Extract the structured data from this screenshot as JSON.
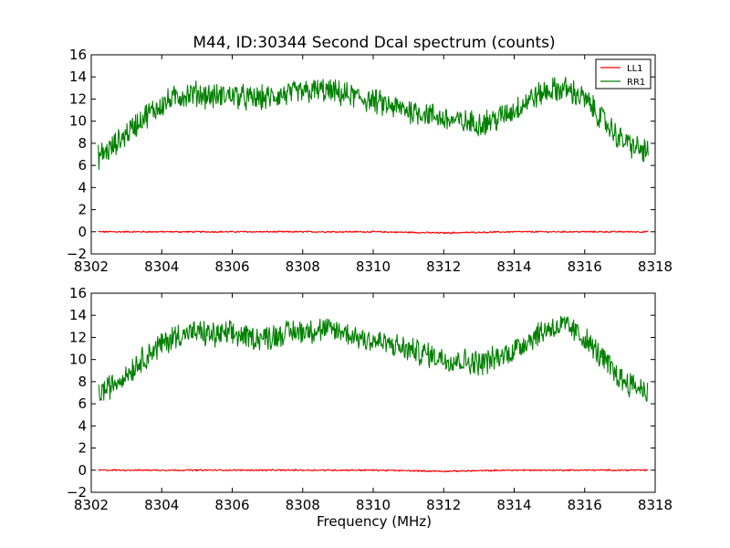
{
  "chart_data": [
    {
      "type": "line",
      "title": "M44, ID:30344 Second Dcal spectrum (counts)",
      "xlabel": "",
      "ylabel": "",
      "xlim": [
        8302,
        8318
      ],
      "ylim": [
        -2,
        16
      ],
      "xticks": [
        "8302",
        "8304",
        "8306",
        "8308",
        "8310",
        "8312",
        "8314",
        "8316",
        "8318"
      ],
      "yticks": [
        "−2",
        "0",
        "2",
        "4",
        "6",
        "8",
        "10",
        "12",
        "14",
        "16"
      ],
      "grid": false,
      "legend": "top-right",
      "series": [
        {
          "name": "LL1",
          "color": "#ff0000",
          "x": [
            8302.2,
            8304,
            8306,
            8308,
            8310,
            8312,
            8314,
            8316,
            8317.8
          ],
          "y": [
            0,
            0,
            0,
            0,
            0,
            -0.1,
            0,
            0,
            0
          ]
        },
        {
          "name": "RR1",
          "color": "#008000",
          "x": [
            8302.2,
            8302.6,
            8303,
            8303.5,
            8304,
            8304.5,
            8305,
            8305.5,
            8306,
            8306.5,
            8307,
            8307.5,
            8308,
            8308.5,
            8309,
            8309.5,
            8310,
            8310.5,
            8311,
            8311.5,
            8312,
            8312.5,
            8313,
            8313.5,
            8314,
            8314.5,
            8315,
            8315.5,
            8316,
            8316.5,
            8317,
            8317.5,
            8317.8
          ],
          "y": [
            6.8,
            7.6,
            8.9,
            10.4,
            11.5,
            12.3,
            12.5,
            12.2,
            12.4,
            12.0,
            12.1,
            12.4,
            12.6,
            12.8,
            12.5,
            12.2,
            11.8,
            11.3,
            11.0,
            10.7,
            10.2,
            9.9,
            9.8,
            10.2,
            11.0,
            12.1,
            12.8,
            12.9,
            12.0,
            10.2,
            8.4,
            7.5,
            7.2
          ]
        }
      ]
    },
    {
      "type": "line",
      "title": "",
      "xlabel": "Frequency (MHz)",
      "ylabel": "",
      "xlim": [
        8302,
        8318
      ],
      "ylim": [
        -2,
        16
      ],
      "xticks": [
        "8302",
        "8304",
        "8306",
        "8308",
        "8310",
        "8312",
        "8314",
        "8316",
        "8318"
      ],
      "yticks": [
        "−2",
        "0",
        "2",
        "4",
        "6",
        "8",
        "10",
        "12",
        "14",
        "16"
      ],
      "grid": false,
      "legend": "",
      "series": [
        {
          "name": "",
          "color": "#ff0000",
          "x": [
            8302.2,
            8304,
            8306,
            8308,
            8310,
            8312,
            8314,
            8316,
            8317.8
          ],
          "y": [
            0,
            0,
            0,
            0,
            0,
            -0.1,
            0,
            0,
            0
          ]
        },
        {
          "name": "",
          "color": "#008000",
          "x": [
            8302.2,
            8302.6,
            8303,
            8303.5,
            8304,
            8304.5,
            8305,
            8305.5,
            8306,
            8306.5,
            8307,
            8307.5,
            8308,
            8308.5,
            8309,
            8309.5,
            8310,
            8310.5,
            8311,
            8311.5,
            8312,
            8312.5,
            8313,
            8313.5,
            8314,
            8314.5,
            8315,
            8315.5,
            8316,
            8316.5,
            8317,
            8317.5,
            8317.8
          ],
          "y": [
            6.9,
            7.7,
            8.7,
            10.2,
            11.4,
            12.3,
            12.4,
            12.2,
            12.3,
            12.0,
            12.0,
            12.4,
            12.6,
            12.7,
            12.6,
            12.1,
            11.7,
            11.3,
            10.9,
            10.5,
            10.1,
            9.9,
            9.7,
            10.1,
            10.9,
            12.0,
            12.9,
            13.0,
            11.9,
            10.1,
            8.3,
            7.5,
            7.2
          ]
        }
      ]
    }
  ]
}
